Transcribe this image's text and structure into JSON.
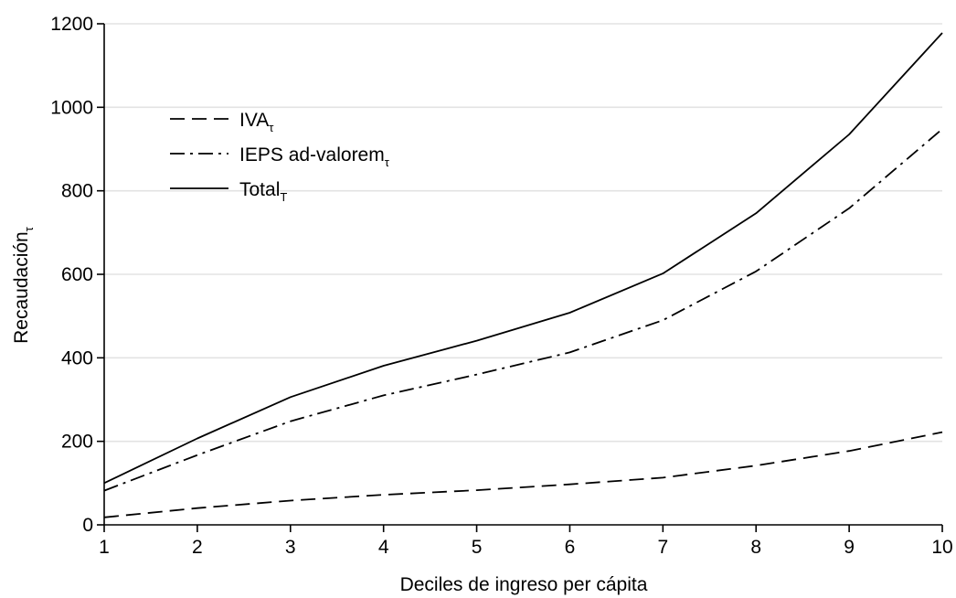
{
  "chart_data": {
    "type": "line",
    "x": [
      1,
      2,
      3,
      4,
      5,
      6,
      7,
      8,
      9,
      10
    ],
    "xlabel": "Deciles de ingreso per cápita",
    "ylabel": {
      "main": "Recaudación",
      "sub": "τ"
    },
    "xlim": [
      1,
      10
    ],
    "ylim": [
      0,
      1200
    ],
    "xticks": [
      "1",
      "2",
      "3",
      "4",
      "5",
      "6",
      "7",
      "8",
      "9",
      "10"
    ],
    "yticks": [
      "0",
      "200",
      "400",
      "600",
      "800",
      "1000",
      "1200"
    ],
    "grid": "horizontal",
    "legend_position": "top-left",
    "series": [
      {
        "name": "IVA",
        "name_sub": "τ",
        "style": "dashed",
        "values": [
          18,
          40,
          58,
          72,
          83,
          97,
          113,
          142,
          177,
          222
        ]
      },
      {
        "name": "IEPS ad-valorem",
        "name_sub": "τ",
        "style": "dashdot",
        "values": [
          82,
          167,
          248,
          310,
          360,
          413,
          490,
          607,
          758,
          948
        ]
      },
      {
        "name": "Total",
        "name_sub": "T",
        "style": "solid",
        "values": [
          100,
          207,
          306,
          381,
          441,
          508,
          602,
          746,
          935,
          1178
        ]
      }
    ]
  }
}
